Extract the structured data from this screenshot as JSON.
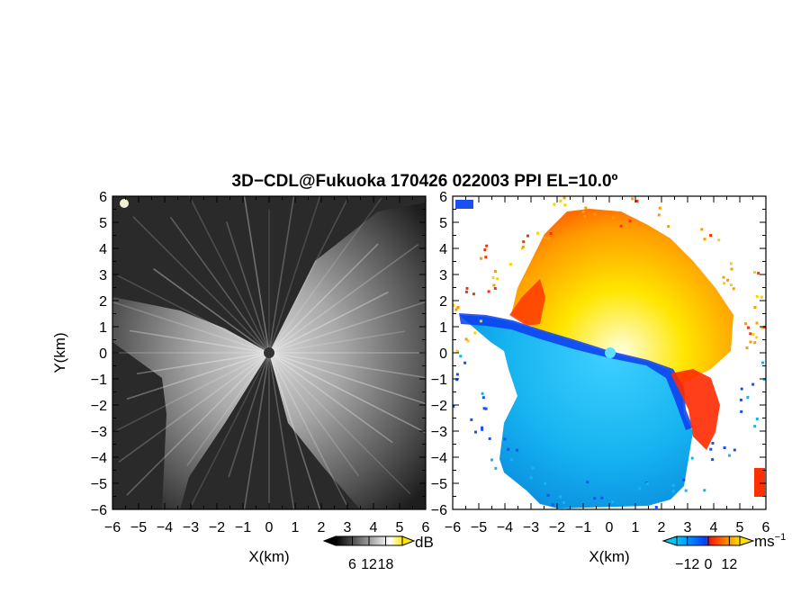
{
  "title": "3D−CDL@Fukuoka 170426 022003 PPI EL=10.0º",
  "chart_data": [
    {
      "type": "heatmap",
      "panel": "reflectivity",
      "x": [
        -6,
        -5,
        -4,
        -3,
        -2,
        -1,
        0,
        1,
        2,
        3,
        4,
        5,
        6
      ],
      "y": [
        -6,
        -5,
        -4,
        -3,
        -2,
        -1,
        0,
        1,
        2,
        3,
        4,
        5,
        6
      ],
      "x_ticks": [
        "−6",
        "−5",
        "−4",
        "−3",
        "−2",
        "−1",
        "0",
        "1",
        "2",
        "3",
        "4",
        "5",
        "6"
      ],
      "y_ticks": [
        "6",
        "5",
        "4",
        "3",
        "2",
        "1",
        "0",
        "−1",
        "−2",
        "−3",
        "−4",
        "−5",
        "−6"
      ],
      "xlabel": "X(km)",
      "ylabel": "Y(km)",
      "xlim": [
        -6,
        6
      ],
      "ylim": [
        -6,
        6
      ],
      "colorbar": {
        "label": "dB",
        "ticks": [
          "6",
          "12",
          "18"
        ],
        "range": [
          0,
          24
        ],
        "colors": [
          "#000000",
          "#ffffff",
          "#ffe800"
        ]
      }
    },
    {
      "type": "heatmap",
      "panel": "doppler_velocity",
      "x": [
        -6,
        -5,
        -4,
        -3,
        -2,
        -1,
        0,
        1,
        2,
        3,
        4,
        5,
        6
      ],
      "y": [
        -6,
        -5,
        -4,
        -3,
        -2,
        -1,
        0,
        1,
        2,
        3,
        4,
        5,
        6
      ],
      "x_ticks": [
        "−6",
        "−5",
        "−4",
        "−3",
        "−2",
        "−1",
        "0",
        "1",
        "2",
        "3",
        "4",
        "5",
        "6"
      ],
      "y_ticks": [
        "6",
        "5",
        "4",
        "3",
        "2",
        "1",
        "0",
        "−1",
        "−2",
        "−3",
        "−4",
        "−5",
        "−6"
      ],
      "xlabel": "X(km)",
      "xlim": [
        -6,
        6
      ],
      "ylim": [
        -6,
        6
      ],
      "colorbar": {
        "label": "ms",
        "label_sup": "−1",
        "ticks": [
          "−12",
          "0",
          "12"
        ],
        "range": [
          -18,
          18
        ],
        "colors": [
          "#00c8ff",
          "#0040ff",
          "#ff2000",
          "#ffe000"
        ]
      }
    }
  ]
}
